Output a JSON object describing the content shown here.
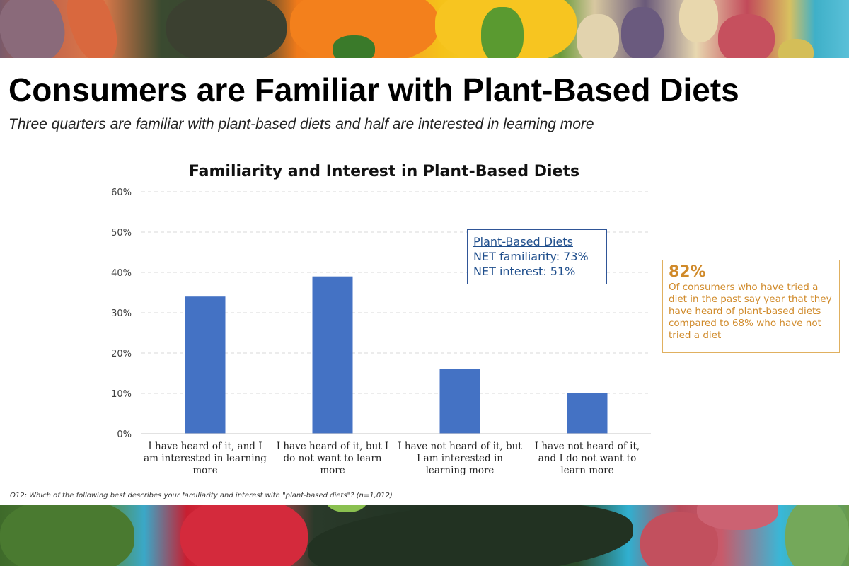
{
  "slide": {
    "title": "Consumers are Familiar with Plant-Based Diets",
    "subtitle": "Three quarters are familiar with plant-based diets and half are interested in learning more",
    "footnote": "O12: Which of the following best describes your familiarity and interest with \"plant-based diets\"? (n=1,012)",
    "banner_top_description": "photo of carrots, zucchini, orange and yellow peppers, potatoes",
    "banner_bottom_description": "photo of green beans, red apple, cucumber, radishes on blue table"
  },
  "callout_net": {
    "heading": "Plant-Based Diets",
    "line1": "NET familiarity: 73%",
    "line2": "NET interest: 51%"
  },
  "callout_stat": {
    "value": "82%",
    "text": "Of consumers who have tried a diet in the past say year that they have heard of plant-based diets compared to 68% who have not tried a diet"
  },
  "colors": {
    "bar": "#4472c4",
    "callout_net": "#2f5597",
    "callout_stat": "#d08a2a"
  },
  "chart_data": {
    "type": "bar",
    "title": "Familiarity and Interest in Plant-Based Diets",
    "xlabel": "",
    "ylabel": "",
    "ylim": [
      0,
      60
    ],
    "yticks": [
      "0%",
      "10%",
      "20%",
      "30%",
      "40%",
      "50%",
      "60%"
    ],
    "grid": true,
    "categories": [
      "I have heard of it, and I am interested in learning more",
      "I have heard of it, but I do not want to learn more",
      "I have not heard of it, but I am interested in learning more",
      "I have not heard of it, and I do not want to learn more"
    ],
    "values": [
      34,
      39,
      16,
      10
    ],
    "unit": "%"
  }
}
